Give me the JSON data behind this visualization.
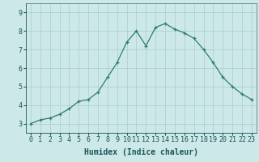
{
  "title": "",
  "xlabel": "Humidex (Indice chaleur)",
  "x_values": [
    0,
    1,
    2,
    3,
    4,
    5,
    6,
    7,
    8,
    9,
    10,
    11,
    12,
    13,
    14,
    15,
    16,
    17,
    18,
    19,
    20,
    21,
    22,
    23
  ],
  "y_values": [
    3.0,
    3.2,
    3.3,
    3.5,
    3.8,
    4.2,
    4.3,
    4.7,
    5.5,
    6.3,
    7.4,
    8.0,
    7.2,
    8.2,
    8.4,
    8.1,
    7.9,
    7.6,
    7.0,
    6.3,
    5.5,
    5.0,
    4.6,
    4.3
  ],
  "line_color": "#2e7d6e",
  "marker_color": "#2e7d6e",
  "bg_color": "#cce8e8",
  "grid_color": "#aacccc",
  "ylim": [
    2.5,
    9.5
  ],
  "xlim": [
    -0.5,
    23.5
  ],
  "yticks": [
    3,
    4,
    5,
    6,
    7,
    8,
    9
  ],
  "xticks": [
    0,
    1,
    2,
    3,
    4,
    5,
    6,
    7,
    8,
    9,
    10,
    11,
    12,
    13,
    14,
    15,
    16,
    17,
    18,
    19,
    20,
    21,
    22,
    23
  ],
  "font_color": "#1a5555",
  "label_fontsize": 7,
  "tick_fontsize": 6
}
